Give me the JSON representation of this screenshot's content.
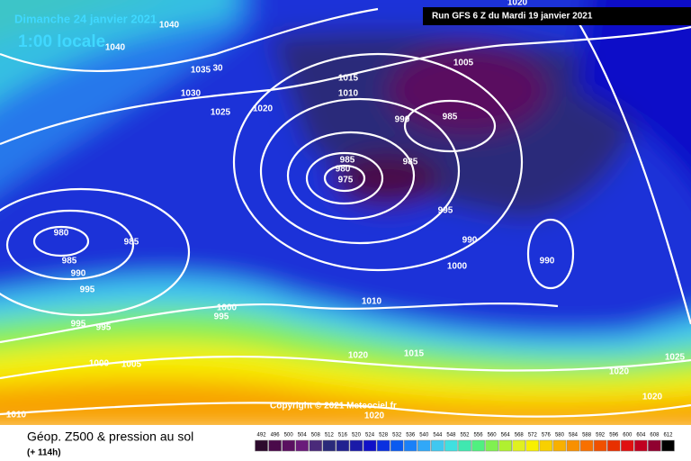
{
  "header": {
    "date": "Dimanche 24 janvier 2021",
    "time": "1:00 locale",
    "run": "Run GFS 6 Z du Mardi 19 janvier 2021"
  },
  "copyright": "Copyright © 2021 Meteociel.fr",
  "footer": {
    "title": "Géop. Z500 & pression au sol",
    "subtitle": "(+ 114h)"
  },
  "legend": {
    "labels": [
      "492",
      "496",
      "500",
      "504",
      "508",
      "512",
      "516",
      "520",
      "524",
      "528",
      "532",
      "536",
      "540",
      "544",
      "548",
      "552",
      "556",
      "560",
      "564",
      "568",
      "572",
      "576",
      "580",
      "584",
      "588",
      "592",
      "596",
      "600",
      "604",
      "608",
      "612"
    ],
    "colors": [
      "#2d0a2d",
      "#4a0a4a",
      "#5a1060",
      "#6a1a7a",
      "#4a2a7a",
      "#2a2a7a",
      "#222290",
      "#1a1aa8",
      "#1010c8",
      "#0a30e0",
      "#0a5af0",
      "#1a80f8",
      "#30a8f8",
      "#40c8f0",
      "#40e0e0",
      "#40e8b0",
      "#50f080",
      "#80f050",
      "#b0f030",
      "#e0f020",
      "#f8f000",
      "#f8d000",
      "#f8b000",
      "#f89000",
      "#f87000",
      "#f05000",
      "#e83000",
      "#e01010",
      "#c00020",
      "#900030",
      "#000000"
    ]
  },
  "isobar_labels": [
    "1040",
    "1040",
    "1035",
    "30",
    "1030",
    "1025",
    "1020",
    "1015",
    "1010",
    "1005",
    "990",
    "985",
    "985",
    "980",
    "975",
    "985",
    "995",
    "990",
    "1000",
    "990",
    "980",
    "985",
    "985",
    "990",
    "995",
    "1000",
    "995",
    "995",
    "995",
    "1010",
    "1000",
    "1005",
    "1020",
    "1015",
    "1020",
    "1025",
    "1020",
    "1020",
    "1010",
    "1020"
  ]
}
